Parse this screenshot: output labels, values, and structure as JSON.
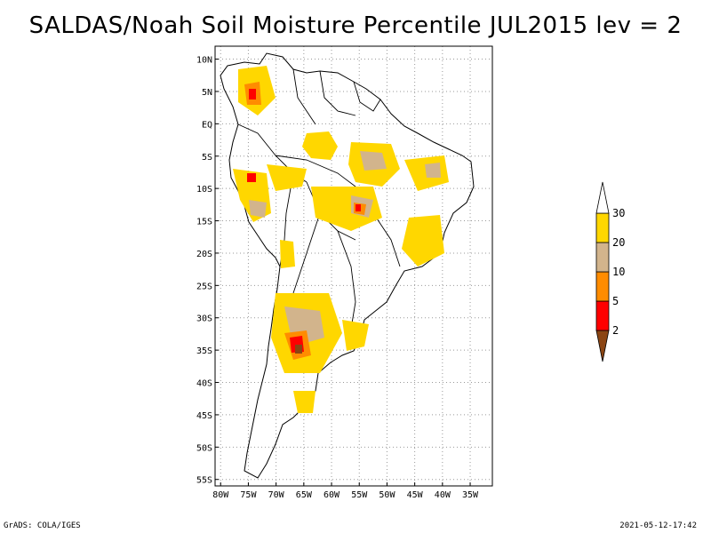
{
  "title": "SALDAS/Noah Soil Moisture Percentile JUL2015 lev = 2",
  "map": {
    "lon_min": -81,
    "lon_max": -31,
    "lat_min": -56,
    "lat_max": 12,
    "lon_ticks": [
      {
        "lon": -80,
        "label": "80W"
      },
      {
        "lon": -75,
        "label": "75W"
      },
      {
        "lon": -70,
        "label": "70W"
      },
      {
        "lon": -65,
        "label": "65W"
      },
      {
        "lon": -60,
        "label": "60W"
      },
      {
        "lon": -55,
        "label": "55W"
      },
      {
        "lon": -50,
        "label": "50W"
      },
      {
        "lon": -45,
        "label": "45W"
      },
      {
        "lon": -40,
        "label": "40W"
      },
      {
        "lon": -35,
        "label": "35W"
      }
    ],
    "lat_ticks": [
      {
        "lat": 10,
        "label": "10N"
      },
      {
        "lat": 5,
        "label": "5N"
      },
      {
        "lat": 0,
        "label": "EQ"
      },
      {
        "lat": -5,
        "label": "5S"
      },
      {
        "lat": -10,
        "label": "10S"
      },
      {
        "lat": -15,
        "label": "15S"
      },
      {
        "lat": -20,
        "label": "20S"
      },
      {
        "lat": -25,
        "label": "25S"
      },
      {
        "lat": -30,
        "label": "30S"
      },
      {
        "lat": -35,
        "label": "35S"
      },
      {
        "lat": -40,
        "label": "40S"
      },
      {
        "lat": -45,
        "label": "45S"
      },
      {
        "lat": -50,
        "label": "50S"
      },
      {
        "lat": -55,
        "label": "55S"
      }
    ],
    "grid": true
  },
  "legend": {
    "levels": [
      "2",
      "5",
      "10",
      "20",
      "30"
    ],
    "colors": [
      "#8b4513",
      "#ff0000",
      "#ff8c00",
      "#d2b48c",
      "#ffd700",
      "#ffffff"
    ]
  },
  "footer": {
    "left": "GrADS: COLA/IGES",
    "right": "2021-05-12-17:42"
  }
}
